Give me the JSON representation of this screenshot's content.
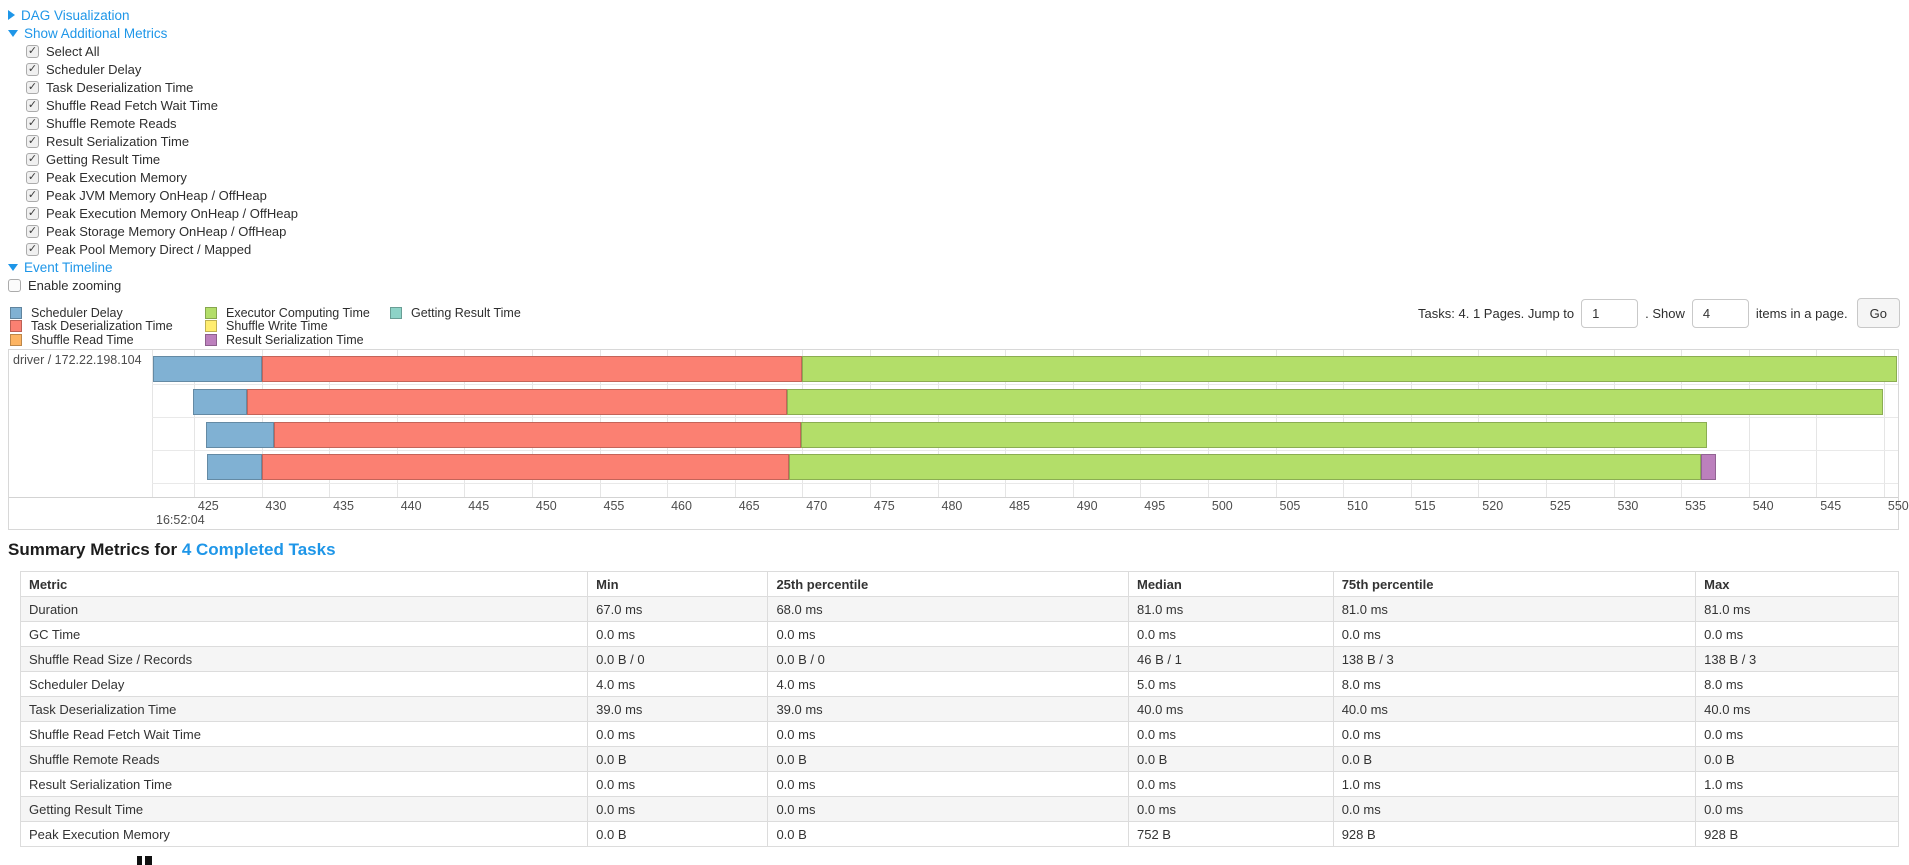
{
  "sections": {
    "dag": {
      "label": "DAG Visualization",
      "collapsed": true
    },
    "additional_metrics": {
      "label": "Show Additional Metrics",
      "collapsed": false,
      "items": [
        {
          "label": "Select All",
          "checked": true
        },
        {
          "label": "Scheduler Delay",
          "checked": true
        },
        {
          "label": "Task Deserialization Time",
          "checked": true
        },
        {
          "label": "Shuffle Read Fetch Wait Time",
          "checked": true
        },
        {
          "label": "Shuffle Remote Reads",
          "checked": true
        },
        {
          "label": "Result Serialization Time",
          "checked": true
        },
        {
          "label": "Getting Result Time",
          "checked": true
        },
        {
          "label": "Peak Execution Memory",
          "checked": true
        },
        {
          "label": "Peak JVM Memory OnHeap / OffHeap",
          "checked": true
        },
        {
          "label": "Peak Execution Memory OnHeap / OffHeap",
          "checked": true
        },
        {
          "label": "Peak Storage Memory OnHeap / OffHeap",
          "checked": true
        },
        {
          "label": "Peak Pool Memory Direct / Mapped",
          "checked": true
        }
      ]
    },
    "event_timeline": {
      "label": "Event Timeline",
      "collapsed": false,
      "enable_zooming": {
        "label": "Enable zooming",
        "checked": false
      }
    }
  },
  "legend": {
    "columns": [
      [
        {
          "label": "Scheduler Delay",
          "color": "#80B1D3"
        },
        {
          "label": "Task Deserialization Time",
          "color": "#FB8072"
        },
        {
          "label": "Shuffle Read Time",
          "color": "#FDB462"
        }
      ],
      [
        {
          "label": "Executor Computing Time",
          "color": "#B3DE69"
        },
        {
          "label": "Shuffle Write Time",
          "color": "#FFED6F"
        },
        {
          "label": "Result Serialization Time",
          "color": "#BC80BD"
        }
      ],
      [
        {
          "label": "Getting Result Time",
          "color": "#8DD3C7"
        }
      ]
    ]
  },
  "pagination": {
    "tasks_text": "Tasks: 4. 1 Pages. Jump to",
    "jump_value": "1",
    "show_label": ". Show",
    "show_value": "4",
    "items_label": "items in a page.",
    "go_label": "Go"
  },
  "chart_data": {
    "type": "gantt-timeline",
    "group_label": "driver / 172.22.198.104",
    "x_axis": {
      "tick_start": 425,
      "tick_end": 550,
      "tick_step": 5,
      "unit": "seconds-of-minute (ms scale)",
      "major_time_label": "16:52:04"
    },
    "colors": {
      "scheduler_delay": "#80B1D3",
      "task_deserialization": "#FB8072",
      "shuffle_read": "#FDB462",
      "executor_computing": "#B3DE69",
      "shuffle_write": "#FFED6F",
      "result_serialization": "#BC80BD",
      "getting_result": "#8DD3C7"
    },
    "tasks": [
      {
        "start_ms": 422.0,
        "segments": [
          {
            "metric": "scheduler_delay",
            "ms": 8.0
          },
          {
            "metric": "task_deserialization",
            "ms": 40.0
          },
          {
            "metric": "executor_computing",
            "ms": 81.0
          }
        ]
      },
      {
        "start_ms": 424.9,
        "segments": [
          {
            "metric": "scheduler_delay",
            "ms": 4.0
          },
          {
            "metric": "task_deserialization",
            "ms": 40.0
          },
          {
            "metric": "executor_computing",
            "ms": 81.0
          }
        ]
      },
      {
        "start_ms": 425.9,
        "segments": [
          {
            "metric": "scheduler_delay",
            "ms": 5.0
          },
          {
            "metric": "task_deserialization",
            "ms": 39.0
          },
          {
            "metric": "executor_computing",
            "ms": 67.0
          }
        ]
      },
      {
        "start_ms": 426.0,
        "segments": [
          {
            "metric": "scheduler_delay",
            "ms": 4.0
          },
          {
            "metric": "task_deserialization",
            "ms": 39.0
          },
          {
            "metric": "executor_computing",
            "ms": 67.5
          },
          {
            "metric": "result_serialization",
            "ms": 1.1
          }
        ]
      }
    ]
  },
  "summary": {
    "title_prefix": "Summary Metrics for ",
    "title_link": "4 Completed Tasks",
    "columns": [
      "Metric",
      "Min",
      "25th percentile",
      "Median",
      "75th percentile",
      "Max"
    ],
    "rows": [
      {
        "metric": "Duration",
        "values": [
          "67.0 ms",
          "68.0 ms",
          "81.0 ms",
          "81.0 ms",
          "81.0 ms"
        ]
      },
      {
        "metric": "GC Time",
        "values": [
          "0.0 ms",
          "0.0 ms",
          "0.0 ms",
          "0.0 ms",
          "0.0 ms"
        ]
      },
      {
        "metric": "Shuffle Read Size / Records",
        "values": [
          "0.0 B / 0",
          "0.0 B / 0",
          "46 B / 1",
          "138 B / 3",
          "138 B / 3"
        ]
      },
      {
        "metric": "Scheduler Delay",
        "values": [
          "4.0 ms",
          "4.0 ms",
          "5.0 ms",
          "8.0 ms",
          "8.0 ms"
        ]
      },
      {
        "metric": "Task Deserialization Time",
        "values": [
          "39.0 ms",
          "39.0 ms",
          "40.0 ms",
          "40.0 ms",
          "40.0 ms"
        ]
      },
      {
        "metric": "Shuffle Read Fetch Wait Time",
        "values": [
          "0.0 ms",
          "0.0 ms",
          "0.0 ms",
          "0.0 ms",
          "0.0 ms"
        ]
      },
      {
        "metric": "Shuffle Remote Reads",
        "values": [
          "0.0 B",
          "0.0 B",
          "0.0 B",
          "0.0 B",
          "0.0 B"
        ]
      },
      {
        "metric": "Result Serialization Time",
        "values": [
          "0.0 ms",
          "0.0 ms",
          "0.0 ms",
          "1.0 ms",
          "1.0 ms"
        ]
      },
      {
        "metric": "Getting Result Time",
        "values": [
          "0.0 ms",
          "0.0 ms",
          "0.0 ms",
          "0.0 ms",
          "0.0 ms"
        ]
      },
      {
        "metric": "Peak Execution Memory",
        "values": [
          "0.0 B",
          "0.0 B",
          "752 B",
          "928 B",
          "928 B"
        ]
      }
    ]
  }
}
